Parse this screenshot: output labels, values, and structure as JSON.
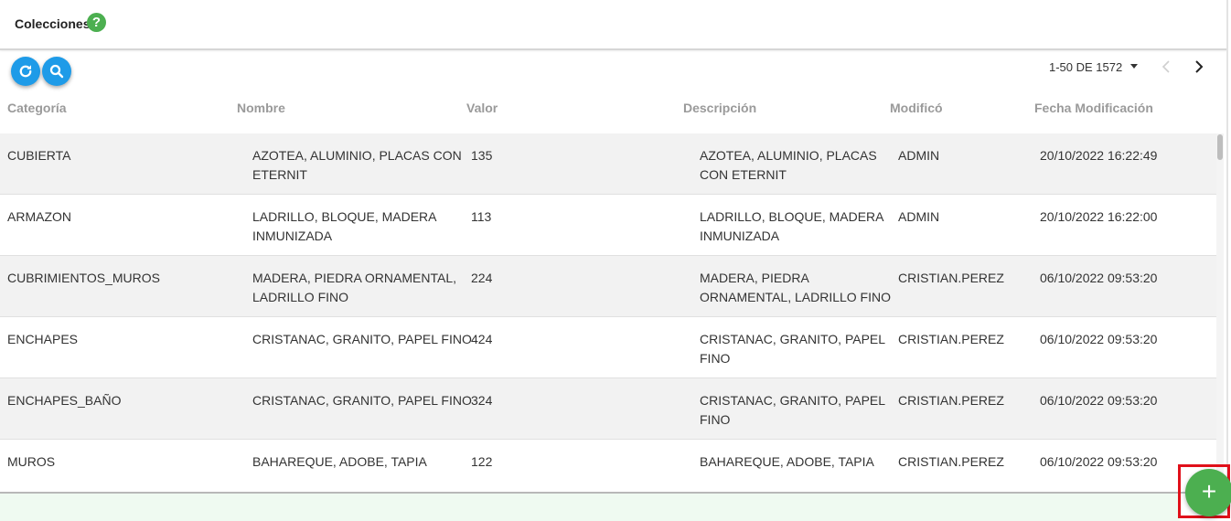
{
  "header": {
    "title": "Colecciones",
    "help_symbol": "?",
    "help_icon": "help-circle-icon",
    "help_color": "#4caf50"
  },
  "toolbar": {
    "refresh_icon": "refresh-icon",
    "search_icon": "search-icon",
    "button_color": "#1e9be8"
  },
  "pagination": {
    "range_label": "1-50 DE 1572",
    "dropdown_icon": "caret-down-icon",
    "prev_icon": "chevron-left-icon",
    "next_icon": "chevron-right-icon"
  },
  "table": {
    "columns": [
      "Categoría",
      "Nombre",
      "Valor",
      "Descripción",
      "Modificó",
      "Fecha Modificación"
    ],
    "rows": [
      {
        "categoria": "CUBIERTA",
        "nombre": [
          "AZOTEA, ALUMINIO, PLACAS CON",
          "ETERNIT"
        ],
        "valor": "135",
        "descripcion": [
          "AZOTEA, ALUMINIO, PLACAS",
          "CON ETERNIT"
        ],
        "modifico": "ADMIN",
        "fecha": "20/10/2022 16:22:49"
      },
      {
        "categoria": "ARMAZON",
        "nombre": [
          "LADRILLO, BLOQUE, MADERA",
          "INMUNIZADA"
        ],
        "valor": "113",
        "descripcion": [
          "LADRILLO, BLOQUE, MADERA",
          "INMUNIZADA"
        ],
        "modifico": "ADMIN",
        "fecha": "20/10/2022 16:22:00"
      },
      {
        "categoria": "CUBRIMIENTOS_MUROS",
        "nombre": [
          "MADERA, PIEDRA ORNAMENTAL,",
          "LADRILLO FINO"
        ],
        "valor": "224",
        "descripcion": [
          "MADERA, PIEDRA",
          "ORNAMENTAL, LADRILLO FINO"
        ],
        "modifico": "CRISTIAN.PEREZ",
        "fecha": "06/10/2022 09:53:20"
      },
      {
        "categoria": "ENCHAPES",
        "nombre": [
          "CRISTANAC, GRANITO, PAPEL FINO"
        ],
        "valor": "424",
        "descripcion": [
          "CRISTANAC, GRANITO, PAPEL",
          "FINO"
        ],
        "modifico": "CRISTIAN.PEREZ",
        "fecha": "06/10/2022 09:53:20"
      },
      {
        "categoria": "ENCHAPES_BAÑO",
        "nombre": [
          "CRISTANAC, GRANITO, PAPEL FINO"
        ],
        "valor": "324",
        "descripcion": [
          "CRISTANAC, GRANITO, PAPEL",
          "FINO"
        ],
        "modifico": "CRISTIAN.PEREZ",
        "fecha": "06/10/2022 09:53:20"
      },
      {
        "categoria": "MUROS",
        "nombre": [
          "BAHAREQUE, ADOBE, TAPIA"
        ],
        "valor": "122",
        "descripcion": [
          "BAHAREQUE, ADOBE, TAPIA"
        ],
        "modifico": "CRISTIAN.PEREZ",
        "fecha": "06/10/2022 09:53:20"
      }
    ]
  },
  "fab": {
    "symbol": "+",
    "icon": "plus-icon",
    "color": "#4caf50",
    "highlight_color": "#e0101a"
  }
}
